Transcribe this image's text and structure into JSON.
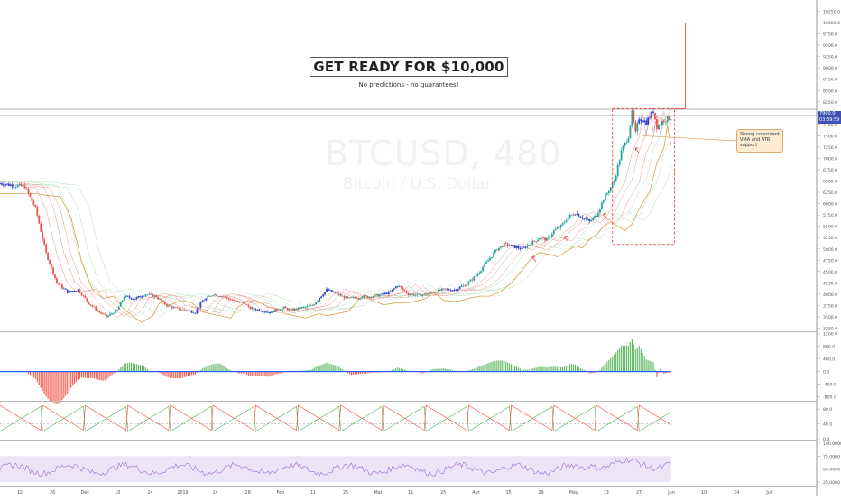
{
  "chart_title_box": "GET READY FOR $10,000",
  "chart_subtitle": "No predictions - no guarantees!",
  "watermark": {
    "symbol": "BTCUSD, 480",
    "name": "Bitcoin / U.S. Dollar"
  },
  "annotation": "Strong coincident VMA and ATR support",
  "price_tags": {
    "last_price": "7900.0",
    "countdown": "03:39:59"
  },
  "colors": {
    "up_candle": "#26a69a",
    "down_candle": "#ef5350",
    "blue_candle": "#2a3fcf",
    "target_box": "#e53935",
    "histogram_up": "#4caf50",
    "histogram_down": "#f44336",
    "rsi_band": "#ece4f7",
    "rsi_line": "#9c6fd0",
    "stoch_green": "#4caf50",
    "stoch_red": "#f44336"
  },
  "chart_data": [
    {
      "type": "candlestick",
      "pane": "price",
      "yaxis_ticks": [
        "10250.0",
        "10000.0",
        "9750.0",
        "9500.0",
        "9250.0",
        "9000.0",
        "8750.0",
        "8500.0",
        "8250.0",
        "8000.0",
        "7750.0",
        "7500.0",
        "7250.0",
        "7000.0",
        "6750.0",
        "6500.0",
        "6250.0",
        "6000.0",
        "5750.0",
        "5500.0",
        "5250.0",
        "5000.0",
        "4750.0",
        "4500.0",
        "4250.0",
        "4000.0",
        "3750.0",
        "3500.0",
        "3250.0"
      ],
      "ylim": [
        3200,
        10500
      ],
      "x_ticks": [
        "12",
        "26",
        "Dec",
        "10",
        "24",
        "2019",
        "14",
        "28",
        "Feb",
        "11",
        "25",
        "Mar",
        "11",
        "25",
        "Apr",
        "15",
        "29",
        "May",
        "13",
        "27",
        "Jun",
        "10",
        "24",
        "Jul"
      ],
      "close_path": [
        [
          0,
          6450
        ],
        [
          8,
          6400
        ],
        [
          14,
          6380
        ],
        [
          20,
          5900
        ],
        [
          26,
          4900
        ],
        [
          32,
          4250
        ],
        [
          38,
          4050
        ],
        [
          44,
          4100
        ],
        [
          50,
          3800
        ],
        [
          56,
          3600
        ],
        [
          60,
          3500
        ],
        [
          66,
          3650
        ],
        [
          70,
          3950
        ],
        [
          76,
          3900
        ],
        [
          82,
          4000
        ],
        [
          88,
          3950
        ],
        [
          94,
          3750
        ],
        [
          98,
          3700
        ],
        [
          104,
          3650
        ],
        [
          110,
          3600
        ],
        [
          114,
          3850
        ],
        [
          120,
          4000
        ],
        [
          126,
          3950
        ],
        [
          132,
          3850
        ],
        [
          138,
          3800
        ],
        [
          140,
          3700
        ],
        [
          146,
          3650
        ],
        [
          152,
          3600
        ],
        [
          156,
          3650
        ],
        [
          160,
          3700
        ],
        [
          164,
          3650
        ],
        [
          170,
          3700
        ],
        [
          176,
          3750
        ],
        [
          184,
          4100
        ],
        [
          190,
          4000
        ],
        [
          196,
          3900
        ],
        [
          204,
          3950
        ],
        [
          210,
          3950
        ],
        [
          216,
          4000
        ],
        [
          220,
          4050
        ],
        [
          224,
          4200
        ],
        [
          230,
          4000
        ],
        [
          236,
          3980
        ],
        [
          240,
          4000
        ],
        [
          244,
          4050
        ],
        [
          250,
          4100
        ],
        [
          256,
          4100
        ],
        [
          262,
          4200
        ],
        [
          268,
          4400
        ],
        [
          274,
          4700
        ],
        [
          280,
          5000
        ],
        [
          284,
          5100
        ],
        [
          290,
          5050
        ],
        [
          294,
          5000
        ],
        [
          300,
          5150
        ],
        [
          304,
          5250
        ],
        [
          308,
          5200
        ],
        [
          312,
          5400
        ],
        [
          316,
          5500
        ],
        [
          320,
          5700
        ],
        [
          324,
          5800
        ],
        [
          328,
          5700
        ],
        [
          332,
          5600
        ],
        [
          336,
          5750
        ],
        [
          340,
          6100
        ],
        [
          346,
          6500
        ],
        [
          350,
          7150
        ],
        [
          354,
          7500
        ],
        [
          356,
          8000
        ],
        [
          358,
          7550
        ],
        [
          360,
          7900
        ],
        [
          364,
          7800
        ],
        [
          368,
          8050
        ],
        [
          370,
          7700
        ],
        [
          374,
          7850
        ],
        [
          378,
          7900
        ]
      ],
      "target_box": {
        "from": 345,
        "to": 380,
        "low": 5100,
        "high": 8100,
        "target": 10000
      },
      "support_arrows": [
        300,
        318,
        340,
        358
      ]
    },
    {
      "type": "bar",
      "pane": "momentum_histogram",
      "yaxis_ticks": [
        "1200.0",
        "800.0",
        "400.0",
        "0.0",
        "-400.0",
        "-800.0"
      ],
      "ylim": [
        -900,
        1250
      ]
    },
    {
      "type": "line",
      "pane": "stochastic",
      "yaxis_ticks": [
        "80.0",
        "40.0",
        "0.0"
      ],
      "ylim": [
        0,
        100
      ]
    },
    {
      "type": "area",
      "pane": "rsi",
      "yaxis_ticks": [
        "100.0000",
        "75.0000",
        "50.0000",
        "25.0000"
      ],
      "ylim": [
        20,
        105
      ]
    }
  ]
}
